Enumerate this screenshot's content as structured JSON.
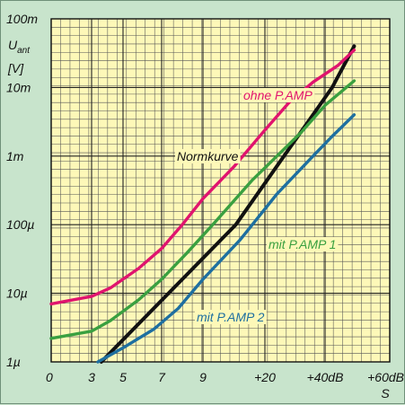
{
  "chart_data": {
    "type": "line",
    "y_unit_label": [
      "U",
      "ant",
      "[V]"
    ],
    "y_scale": "log",
    "y_ticks": [
      {
        "value": 1e-06,
        "label": "1µ"
      },
      {
        "value": 1e-05,
        "label": "10µ"
      },
      {
        "value": 0.0001,
        "label": "100µ"
      },
      {
        "value": 0.001,
        "label": "1m"
      },
      {
        "value": 0.01,
        "label": "10m"
      },
      {
        "value": 0.1,
        "label": "100m"
      }
    ],
    "x_ticks": [
      "0",
      "3",
      "5",
      "7",
      "9",
      "+20",
      "+40dB",
      "+60dB"
    ],
    "x_unit": "S",
    "grid": true,
    "colors": {
      "background": "#c8e4cc",
      "plot_area": "#fdf8b8",
      "grid": "#555555",
      "normkurve": "#111111",
      "ohne": "#e0146e",
      "pamp1": "#3aa040",
      "pamp2": "#1e6fa0"
    },
    "series": [
      {
        "name": "Normkurve",
        "color_key": "normkurve",
        "points": [
          [
            1.31,
            1e-06
          ],
          [
            4.53,
            0.0001
          ],
          [
            6.11,
            0.01
          ],
          [
            6.45,
            0.04
          ]
        ]
      },
      {
        "name": "ohne P.AMP",
        "color_key": "ohne",
        "points": [
          [
            0,
            7e-06
          ],
          [
            1.0,
            9e-06
          ],
          [
            1.6,
            1.2e-05
          ],
          [
            2.4,
            2.3e-05
          ],
          [
            3.0,
            4.5e-05
          ],
          [
            3.5,
            0.0001
          ],
          [
            4.0,
            0.00024
          ],
          [
            4.5,
            0.0007
          ],
          [
            5.0,
            0.0024
          ],
          [
            5.4,
            0.006
          ],
          [
            5.8,
            0.012
          ],
          [
            6.2,
            0.021
          ],
          [
            6.45,
            0.035
          ]
        ]
      },
      {
        "name": "mit P.AMP 1",
        "color_key": "pamp1",
        "points": [
          [
            0,
            2.2e-06
          ],
          [
            1.0,
            2.8e-06
          ],
          [
            1.6,
            4e-06
          ],
          [
            2.4,
            8e-06
          ],
          [
            3.0,
            1.6e-05
          ],
          [
            3.6,
            3.8e-05
          ],
          [
            4.2,
            0.00011
          ],
          [
            4.8,
            0.00045
          ],
          [
            5.2,
            0.001
          ],
          [
            5.6,
            0.0022
          ],
          [
            6.0,
            0.0055
          ],
          [
            6.45,
            0.0125
          ]
        ]
      },
      {
        "name": "mit P.AMP 2",
        "color_key": "pamp2",
        "points": [
          [
            1.2,
            1e-06
          ],
          [
            2.0,
            1.6e-06
          ],
          [
            2.8,
            3e-06
          ],
          [
            3.4,
            6e-06
          ],
          [
            4.0,
            1.6e-05
          ],
          [
            4.6,
            6e-05
          ],
          [
            5.2,
            0.00028
          ],
          [
            5.8,
            0.001
          ],
          [
            6.1,
            0.0019
          ],
          [
            6.45,
            0.004
          ]
        ]
      }
    ],
    "annotations": [
      {
        "text": "ohne P.AMP",
        "color_key": "ohne"
      },
      {
        "text": "Normkurve",
        "color_key": "normkurve"
      },
      {
        "text": "mit P.AMP 1",
        "color_key": "pamp1"
      },
      {
        "text": "mit P.AMP 2",
        "color_key": "pamp2"
      }
    ]
  }
}
